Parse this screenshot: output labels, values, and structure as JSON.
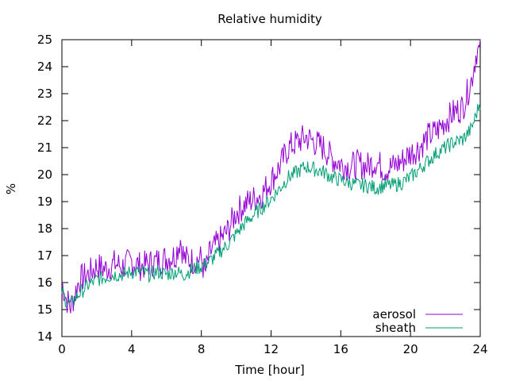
{
  "chart_data": {
    "type": "line",
    "title": "Relative humidity",
    "xlabel": "Time [hour]",
    "ylabel": "%",
    "xlim": [
      0,
      24
    ],
    "ylim": [
      14,
      25
    ],
    "xticks": [
      0,
      4,
      8,
      12,
      16,
      20,
      24
    ],
    "yticks": [
      14,
      15,
      16,
      17,
      18,
      19,
      20,
      21,
      22,
      23,
      24,
      25
    ],
    "grid": false,
    "legend_position": "bottom-right",
    "series": [
      {
        "name": "aerosol",
        "color": "#9400d3",
        "x": [
          0,
          0.25,
          0.5,
          0.75,
          1,
          1.5,
          2,
          2.5,
          3,
          3.5,
          4,
          4.5,
          5,
          5.5,
          6,
          6.5,
          6.8,
          7,
          7.5,
          8,
          8.2,
          8.5,
          9,
          9.5,
          10,
          10.5,
          11,
          11.5,
          12,
          12.5,
          13,
          13.5,
          14,
          14.5,
          15,
          15.5,
          16,
          16.5,
          17,
          17.5,
          18,
          18.5,
          19,
          19.5,
          20,
          20.5,
          21,
          21.5,
          22,
          22.5,
          23,
          23.5,
          23.8,
          24
        ],
        "y": [
          16.0,
          15.4,
          15.1,
          15.6,
          16.1,
          16.3,
          16.6,
          16.5,
          16.7,
          16.6,
          16.8,
          16.6,
          16.7,
          16.8,
          16.9,
          17.0,
          17.6,
          16.9,
          16.8,
          16.9,
          16.3,
          17.1,
          17.5,
          17.9,
          18.6,
          18.9,
          19.1,
          19.3,
          19.8,
          20.3,
          21.0,
          21.2,
          21.4,
          21.2,
          21.0,
          20.6,
          20.4,
          20.3,
          20.4,
          20.3,
          20.5,
          20.2,
          20.3,
          20.5,
          20.8,
          21.0,
          21.4,
          21.6,
          22.0,
          22.3,
          22.5,
          23.5,
          24.6,
          24.5
        ]
      },
      {
        "name": "sheath",
        "color": "#009e73",
        "x": [
          0,
          0.25,
          0.5,
          0.75,
          1,
          1.5,
          2,
          2.5,
          3,
          3.5,
          4,
          4.5,
          5,
          5.5,
          6,
          6.5,
          7,
          7.5,
          8,
          8.5,
          9,
          9.5,
          10,
          10.5,
          11,
          11.5,
          12,
          12.5,
          13,
          13.5,
          14,
          14.5,
          15,
          15.5,
          16,
          16.5,
          17,
          17.5,
          18,
          18.5,
          19,
          19.5,
          20,
          20.5,
          21,
          21.5,
          22,
          22.5,
          23,
          23.5,
          24
        ],
        "y": [
          15.7,
          15.3,
          15.2,
          15.4,
          15.6,
          15.9,
          16.1,
          16.2,
          16.3,
          16.3,
          16.4,
          16.4,
          16.3,
          16.4,
          16.3,
          16.4,
          16.3,
          16.5,
          16.6,
          16.8,
          17.1,
          17.4,
          17.8,
          18.2,
          18.5,
          18.8,
          19.1,
          19.5,
          19.9,
          20.1,
          20.3,
          20.2,
          20.1,
          19.9,
          19.8,
          19.7,
          19.6,
          19.6,
          19.5,
          19.6,
          19.6,
          19.7,
          19.9,
          20.2,
          20.5,
          20.8,
          21.0,
          21.2,
          21.3,
          21.7,
          22.7
        ]
      }
    ]
  }
}
